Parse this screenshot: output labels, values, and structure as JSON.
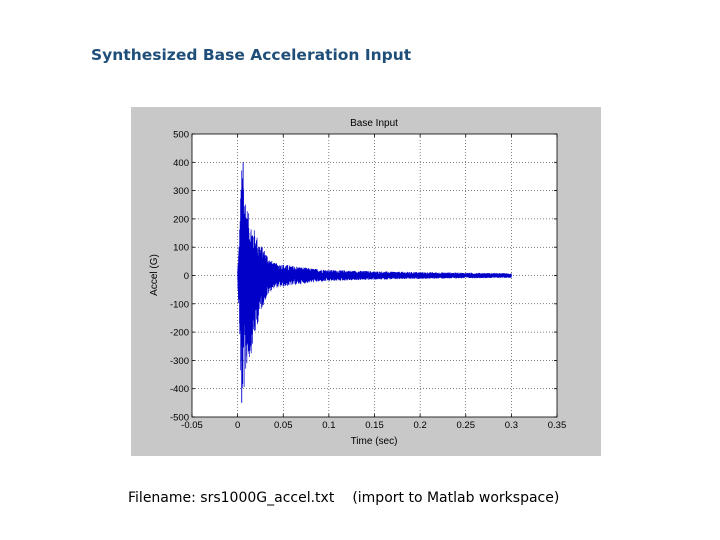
{
  "slide": {
    "title": "Synthesized Base Acceleration Input",
    "caption_file": "Filename:  srs1000G_accel.txt",
    "caption_note": "(import to Matlab workspace)"
  },
  "colors": {
    "panel_bg": "#c8c8c8",
    "plot_bg": "#ffffff",
    "trace": "#0000c8",
    "title_text": "#1f4e79"
  },
  "chart_data": {
    "type": "line",
    "title": "Base Input",
    "xlabel": "Time (sec)",
    "ylabel": "Accel (G)",
    "xlim": [
      -0.05,
      0.35
    ],
    "ylim": [
      -500,
      500
    ],
    "xticks": [
      -0.05,
      0,
      0.05,
      0.1,
      0.15,
      0.2,
      0.25,
      0.3,
      0.35
    ],
    "xtick_labels": [
      "-0.05",
      "0",
      "0.05",
      "0.1",
      "0.15",
      "0.2",
      "0.25",
      "0.3",
      "0.35"
    ],
    "yticks": [
      500,
      400,
      300,
      200,
      100,
      0,
      -100,
      -200,
      -300,
      -400,
      -500
    ],
    "ytick_labels": [
      "500",
      "400",
      "300",
      "200",
      "100",
      "0",
      "-100",
      "-200",
      "-300",
      "-400",
      "-500"
    ],
    "grid": true,
    "series": [
      {
        "signal_start": 0.0,
        "signal_end": 0.3,
        "peak_max": 400,
        "peak_min": -450,
        "x": [
          0,
          0.002,
          0.004,
          0.006,
          0.008,
          0.01,
          0.013,
          0.016,
          0.02,
          0.025,
          0.03,
          0.035,
          0.04,
          0.05,
          0.06,
          0.07,
          0.08,
          0.1,
          0.12,
          0.15,
          0.2,
          0.25,
          0.3
        ],
        "envelope_max": [
          20,
          150,
          370,
          400,
          300,
          250,
          200,
          180,
          150,
          110,
          90,
          60,
          45,
          40,
          35,
          30,
          25,
          20,
          18,
          15,
          12,
          10,
          8
        ],
        "envelope_min": [
          -20,
          -180,
          -450,
          -420,
          -400,
          -320,
          -300,
          -260,
          -200,
          -130,
          -90,
          -60,
          -45,
          -40,
          -35,
          -30,
          -25,
          -20,
          -18,
          -15,
          -12,
          -10,
          -8
        ]
      }
    ]
  }
}
